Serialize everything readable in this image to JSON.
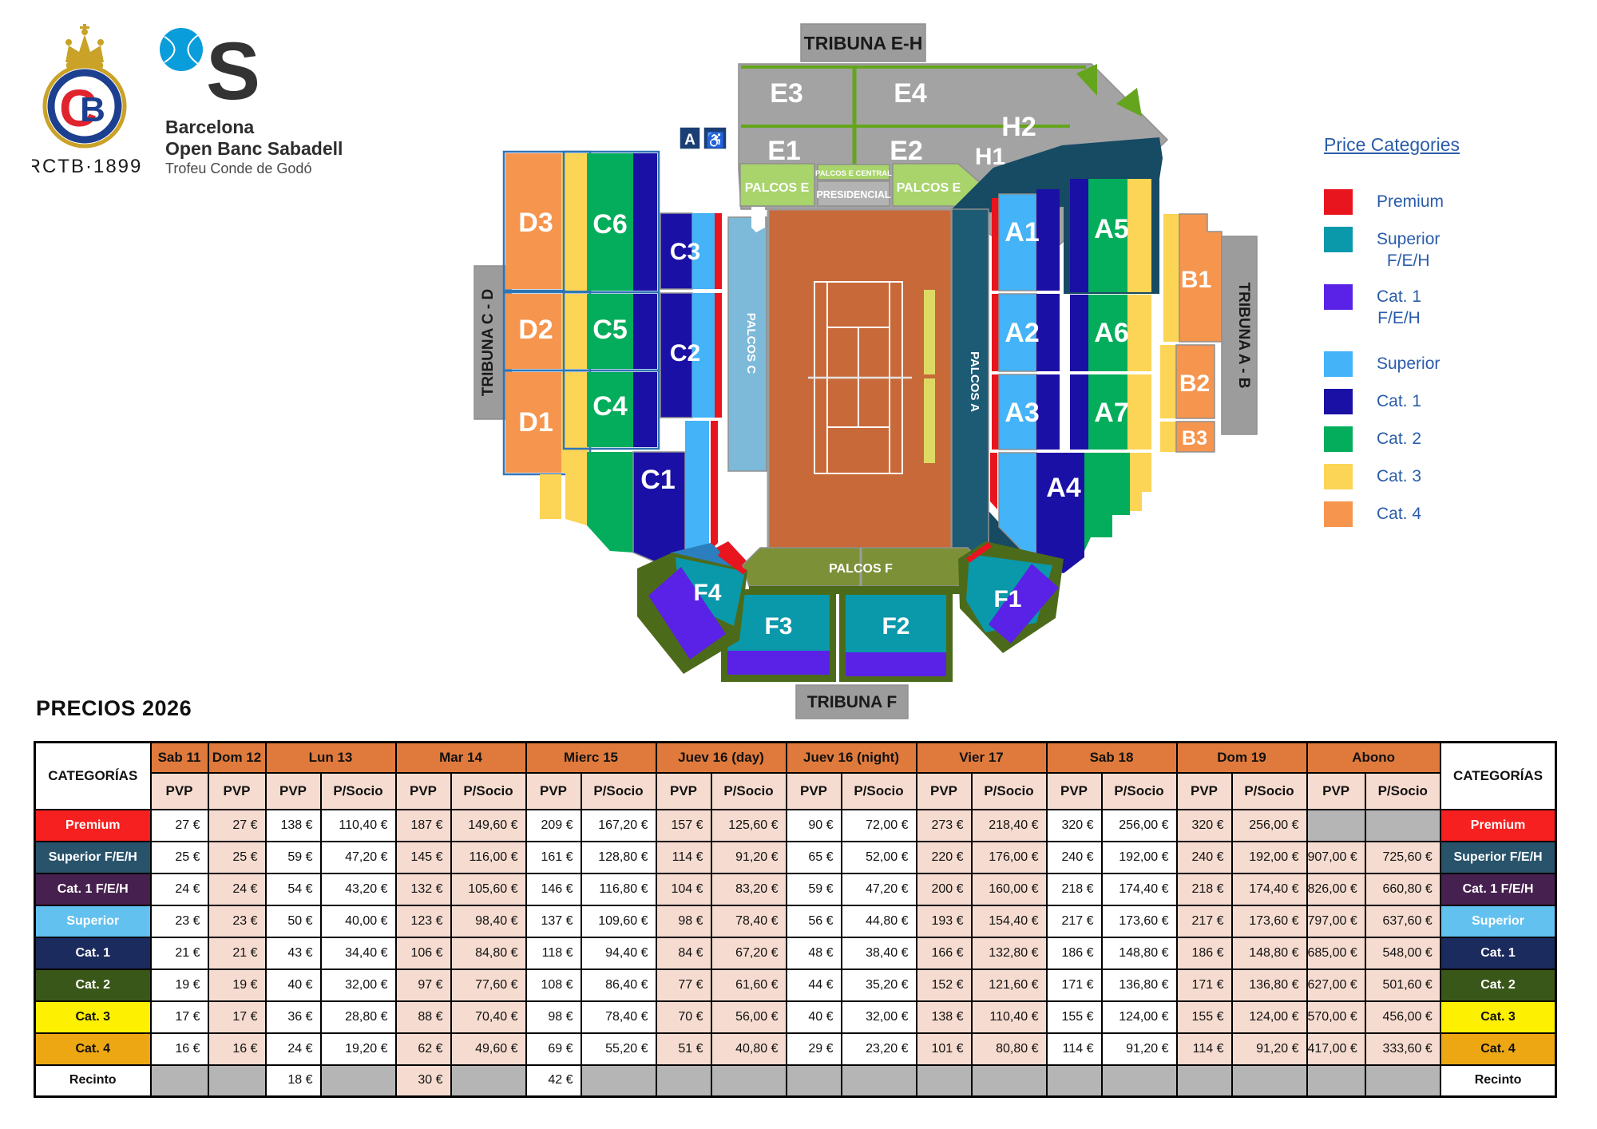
{
  "branding": {
    "rctb_text": "RCTB·1899",
    "s_letter": "S",
    "title_line1": "Barcelona",
    "title_line2": "Open Banc Sabadell",
    "title_line3": "Trofeu Conde de Godó"
  },
  "map": {
    "tribuna_eh": "TRIBUNA E-H",
    "tribuna_cd": "TRIBUNA C - D",
    "tribuna_ab": "TRIBUNA A - B",
    "tribuna_f": "TRIBUNA F",
    "palcos_e_left": "PALCOS E",
    "palcos_e_central": "PALCOS E CENTRAL",
    "presidencial": "PRESIDENCIAL",
    "palcos_e_right": "PALCOS E",
    "palcos_c": "PALCOS C",
    "palcos_a": "PALCOS A",
    "palcos_f": "PALCOS F",
    "assist_label": "A",
    "wheelchair": "♿",
    "sections": {
      "e1": "E1",
      "e2": "E2",
      "e3": "E3",
      "e4": "E4",
      "h1": "H1",
      "h2": "H2",
      "d1": "D1",
      "d2": "D2",
      "d3": "D3",
      "c1": "C1",
      "c2": "C2",
      "c3": "C3",
      "c4": "C4",
      "c5": "C5",
      "c6": "C6",
      "a1": "A1",
      "a2": "A2",
      "a3": "A3",
      "a4": "A4",
      "a5": "A5",
      "a6": "A6",
      "a7": "A7",
      "b1": "B1",
      "b2": "B2",
      "b3": "B3",
      "f1": "F1",
      "f2": "F2",
      "f3": "F3",
      "f4": "F4"
    }
  },
  "legend": {
    "title": "Price Categories",
    "items": [
      {
        "label": "Premium",
        "label2": "",
        "color": "#e8141e"
      },
      {
        "label": "Superior",
        "label2": "F/E/H",
        "color": "#0a98ab"
      },
      {
        "label": "Cat. 1",
        "label2": "F/E/H",
        "color": "#5a22e6"
      },
      {
        "label": "Superior",
        "label2": "",
        "color": "#44b3f8"
      },
      {
        "label": "Cat. 1",
        "label2": "",
        "color": "#1b10a5"
      },
      {
        "label": "Cat. 2",
        "label2": "",
        "color": "#04ad5b"
      },
      {
        "label": "Cat. 3",
        "label2": "",
        "color": "#fcd456"
      },
      {
        "label": "Cat. 4",
        "label2": "",
        "color": "#f6954e"
      }
    ]
  },
  "pricing": {
    "title": "PRECIOS 2026",
    "categories_header": "CATEGORÍAS",
    "day_groups": [
      {
        "label": "Sab 11",
        "cols": [
          "PVP"
        ],
        "shaded": false
      },
      {
        "label": "Dom 12",
        "cols": [
          "PVP"
        ],
        "shaded": true
      },
      {
        "label": "Lun 13",
        "cols": [
          "PVP",
          "P/Socio"
        ],
        "shaded": false
      },
      {
        "label": "Mar 14",
        "cols": [
          "PVP",
          "P/Socio"
        ],
        "shaded": true
      },
      {
        "label": "Mierc 15",
        "cols": [
          "PVP",
          "P/Socio"
        ],
        "shaded": false
      },
      {
        "label": "Juev 16 (day)",
        "cols": [
          "PVP",
          "P/Socio"
        ],
        "shaded": true
      },
      {
        "label": "Juev 16 (night)",
        "cols": [
          "PVP",
          "P/Socio"
        ],
        "shaded": false
      },
      {
        "label": "Vier 17",
        "cols": [
          "PVP",
          "P/Socio"
        ],
        "shaded": true
      },
      {
        "label": "Sab 18",
        "cols": [
          "PVP",
          "P/Socio"
        ],
        "shaded": false
      },
      {
        "label": "Dom 19",
        "cols": [
          "PVP",
          "P/Socio"
        ],
        "shaded": true
      },
      {
        "label": "Abono",
        "cols": [
          "PVP",
          "P/Socio"
        ],
        "shaded": true
      }
    ],
    "rows": [
      {
        "label": "Premium",
        "bg": "#f5201f",
        "fg": "#ffffff",
        "cells": [
          "27 €",
          "27 €",
          "138 €",
          "110,40 €",
          "187 €",
          "149,60 €",
          "209 €",
          "167,20 €",
          "157 €",
          "125,60 €",
          "90 €",
          "72,00 €",
          "273 €",
          "218,40 €",
          "320 €",
          "256,00 €",
          "320 €",
          "256,00 €",
          null,
          null
        ]
      },
      {
        "label": "Superior F/E/H",
        "bg": "#28536b",
        "fg": "#ffffff",
        "cells": [
          "25 €",
          "25 €",
          "59 €",
          "47,20 €",
          "145 €",
          "116,00 €",
          "161 €",
          "128,80 €",
          "114 €",
          "91,20 €",
          "65 €",
          "52,00 €",
          "220 €",
          "176,00 €",
          "240 €",
          "192,00 €",
          "240 €",
          "192,00 €",
          "907,00 €",
          "725,60 €"
        ]
      },
      {
        "label": "Cat. 1  F/E/H",
        "bg": "#46204e",
        "fg": "#ffffff",
        "cells": [
          "24 €",
          "24 €",
          "54 €",
          "43,20 €",
          "132 €",
          "105,60 €",
          "146 €",
          "116,80 €",
          "104 €",
          "83,20 €",
          "59 €",
          "47,20 €",
          "200 €",
          "160,00 €",
          "218 €",
          "174,40 €",
          "218 €",
          "174,40 €",
          "826,00 €",
          "660,80 €"
        ]
      },
      {
        "label": "Superior",
        "bg": "#63c1f0",
        "fg": "#ffffff",
        "cells": [
          "23 €",
          "23 €",
          "50 €",
          "40,00 €",
          "123 €",
          "98,40 €",
          "137 €",
          "109,60 €",
          "98 €",
          "78,40 €",
          "56 €",
          "44,80 €",
          "193 €",
          "154,40 €",
          "217 €",
          "173,60 €",
          "217 €",
          "173,60 €",
          "797,00 €",
          "637,60 €"
        ]
      },
      {
        "label": "Cat. 1",
        "bg": "#1c2b5e",
        "fg": "#ffffff",
        "cells": [
          "21 €",
          "21 €",
          "43 €",
          "34,40 €",
          "106 €",
          "84,80 €",
          "118 €",
          "94,40 €",
          "84 €",
          "67,20 €",
          "48 €",
          "38,40 €",
          "166 €",
          "132,80 €",
          "186 €",
          "148,80 €",
          "186 €",
          "148,80 €",
          "685,00 €",
          "548,00 €"
        ]
      },
      {
        "label": "Cat. 2",
        "bg": "#3a571a",
        "fg": "#ffffff",
        "cells": [
          "19 €",
          "19 €",
          "40 €",
          "32,00 €",
          "97 €",
          "77,60 €",
          "108 €",
          "86,40 €",
          "77 €",
          "61,60 €",
          "44 €",
          "35,20 €",
          "152 €",
          "121,60 €",
          "171 €",
          "136,80 €",
          "171 €",
          "136,80 €",
          "627,00 €",
          "501,60 €"
        ]
      },
      {
        "label": "Cat. 3",
        "bg": "#fdf000",
        "fg": "#111111",
        "cells": [
          "17 €",
          "17 €",
          "36 €",
          "28,80 €",
          "88 €",
          "70,40 €",
          "98 €",
          "78,40 €",
          "70 €",
          "56,00 €",
          "40 €",
          "32,00 €",
          "138 €",
          "110,40 €",
          "155 €",
          "124,00 €",
          "155 €",
          "124,00 €",
          "570,00 €",
          "456,00 €"
        ]
      },
      {
        "label": "Cat. 4",
        "bg": "#eda713",
        "fg": "#111111",
        "cells": [
          "16 €",
          "16 €",
          "24 €",
          "19,20 €",
          "62 €",
          "49,60 €",
          "69 €",
          "55,20 €",
          "51 €",
          "40,80 €",
          "29 €",
          "23,20 €",
          "101 €",
          "80,80 €",
          "114 €",
          "91,20 €",
          "114 €",
          "91,20 €",
          "417,00 €",
          "333,60 €"
        ]
      },
      {
        "label": "Recinto",
        "bg": "#ffffff",
        "fg": "#111111",
        "cells": [
          null,
          null,
          "18 €",
          null,
          "30 €",
          null,
          "42 €",
          null,
          null,
          null,
          null,
          null,
          null,
          null,
          null,
          null,
          null,
          null,
          null,
          null
        ]
      }
    ]
  }
}
